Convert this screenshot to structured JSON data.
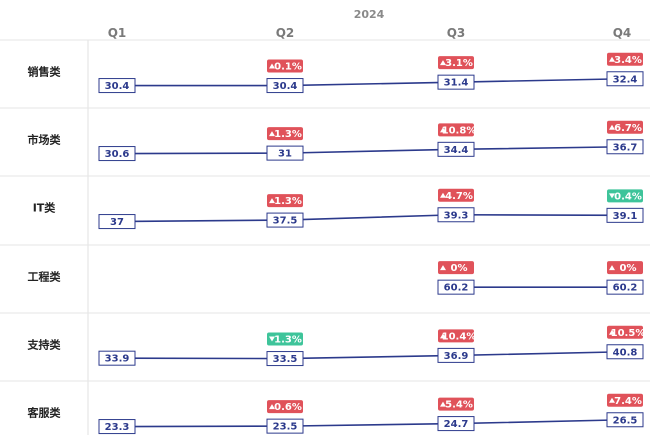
{
  "chart_data": {
    "type": "line",
    "header": "2024",
    "categories": [
      "Q1",
      "Q2",
      "Q3",
      "Q4"
    ],
    "series": [
      {
        "name": "销售类",
        "values": [
          30.4,
          30.4,
          31.4,
          32.4
        ],
        "changes": [
          null,
          "0.1%",
          "3.1%",
          "3.4%"
        ],
        "dirs": [
          null,
          "up",
          "up",
          "up"
        ]
      },
      {
        "name": "市场类",
        "values": [
          30.6,
          31,
          34.4,
          36.7
        ],
        "changes": [
          null,
          "1.3%",
          "10.8%",
          "6.7%"
        ],
        "dirs": [
          null,
          "up",
          "up",
          "up"
        ]
      },
      {
        "name": "IT类",
        "values": [
          37,
          37.5,
          39.3,
          39.1
        ],
        "changes": [
          null,
          "1.3%",
          "4.7%",
          "0.4%"
        ],
        "dirs": [
          null,
          "up",
          "up",
          "down"
        ]
      },
      {
        "name": "工程类",
        "values": [
          null,
          null,
          60.2,
          60.2
        ],
        "changes": [
          null,
          null,
          "0%",
          "0%"
        ],
        "dirs": [
          null,
          null,
          "up",
          "up"
        ]
      },
      {
        "name": "支持类",
        "values": [
          33.9,
          33.5,
          36.9,
          40.8
        ],
        "changes": [
          null,
          "1.3%",
          "10.4%",
          "10.5%"
        ],
        "dirs": [
          null,
          "down",
          "up",
          "up"
        ]
      },
      {
        "name": "客服类",
        "values": [
          23.3,
          23.5,
          24.7,
          26.5
        ],
        "changes": [
          null,
          "0.6%",
          "5.4%",
          "7.4%"
        ],
        "dirs": [
          null,
          "up",
          "up",
          "up"
        ]
      }
    ],
    "colors": {
      "line": "#2c3a8c",
      "up": "#e0525a",
      "down": "#3ec49a"
    }
  }
}
